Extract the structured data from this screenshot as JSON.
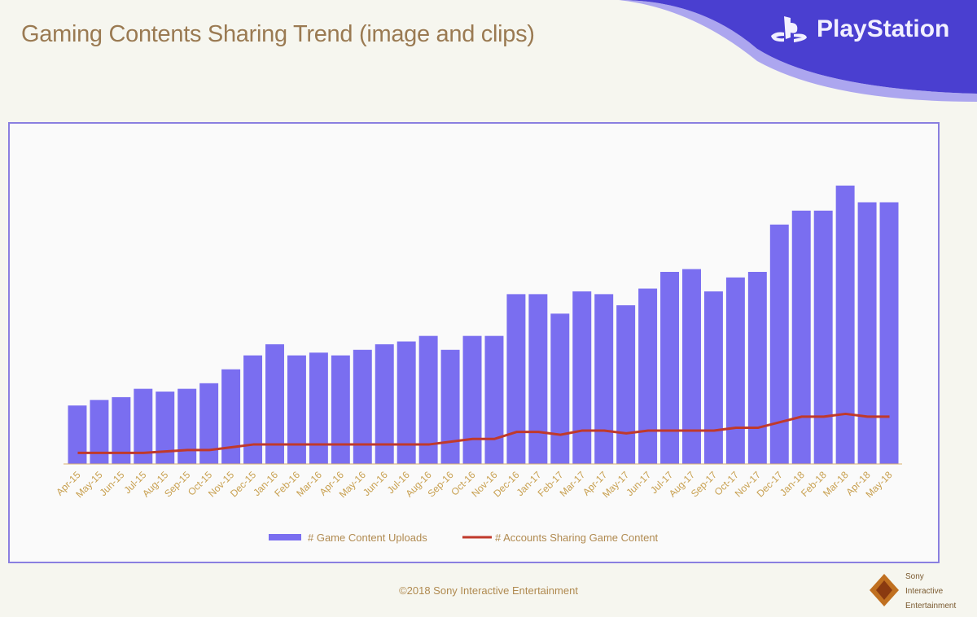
{
  "slide": {
    "title": "Gaming Contents Sharing Trend (image and clips)",
    "brand": "PlayStation",
    "footer": "©2018 Sony Interactive Entertainment",
    "footer_logo_lines": [
      "Sony",
      "Interactive",
      "Entertainment"
    ]
  },
  "colors": {
    "bars": "#7a6ef0",
    "line": "#c0392b",
    "labels": "#c8a050"
  },
  "chart_data": {
    "type": "bar",
    "title": "Gaming Contents Sharing Trend (image and clips)",
    "xlabel": "",
    "ylabel": "",
    "ylim": [
      0,
      100
    ],
    "note": "no y-axis shown; values are relative (max bar = 100)",
    "categories": [
      "Apr-15",
      "May-15",
      "Jun-15",
      "Jul-15",
      "Aug-15",
      "Sep-15",
      "Oct-15",
      "Nov-15",
      "Dec-15",
      "Jan-16",
      "Feb-16",
      "Mar-16",
      "Apr-16",
      "May-16",
      "Jun-16",
      "Jul-16",
      "Aug-16",
      "Sep-16",
      "Oct-16",
      "Nov-16",
      "Dec-16",
      "Jan-17",
      "Feb-17",
      "Mar-17",
      "Apr-17",
      "May-17",
      "Jun-17",
      "Jul-17",
      "Aug-17",
      "Sep-17",
      "Oct-17",
      "Nov-17",
      "Dec-17",
      "Jan-18",
      "Feb-18",
      "Mar-18",
      "Apr-18",
      "May-18"
    ],
    "series": [
      {
        "name": "# Game Content Uploads",
        "type": "bar",
        "values": [
          21,
          23,
          24,
          27,
          26,
          27,
          29,
          34,
          39,
          43,
          39,
          40,
          39,
          41,
          43,
          44,
          46,
          41,
          46,
          46,
          61,
          61,
          54,
          62,
          61,
          57,
          63,
          69,
          70,
          62,
          67,
          69,
          86,
          91,
          91,
          100,
          94,
          94
        ]
      },
      {
        "name": "# Accounts Sharing Game Content",
        "type": "line",
        "values": [
          4,
          4,
          4,
          4,
          4.5,
          5,
          5,
          6,
          7,
          7,
          7,
          7,
          7,
          7,
          7,
          7,
          7,
          8,
          9,
          9,
          11.5,
          11.5,
          10.5,
          12,
          12,
          11,
          12,
          12,
          12,
          12,
          13,
          13,
          15,
          17,
          17,
          18,
          17,
          17
        ]
      }
    ],
    "legend": "bottom",
    "grid": false
  }
}
